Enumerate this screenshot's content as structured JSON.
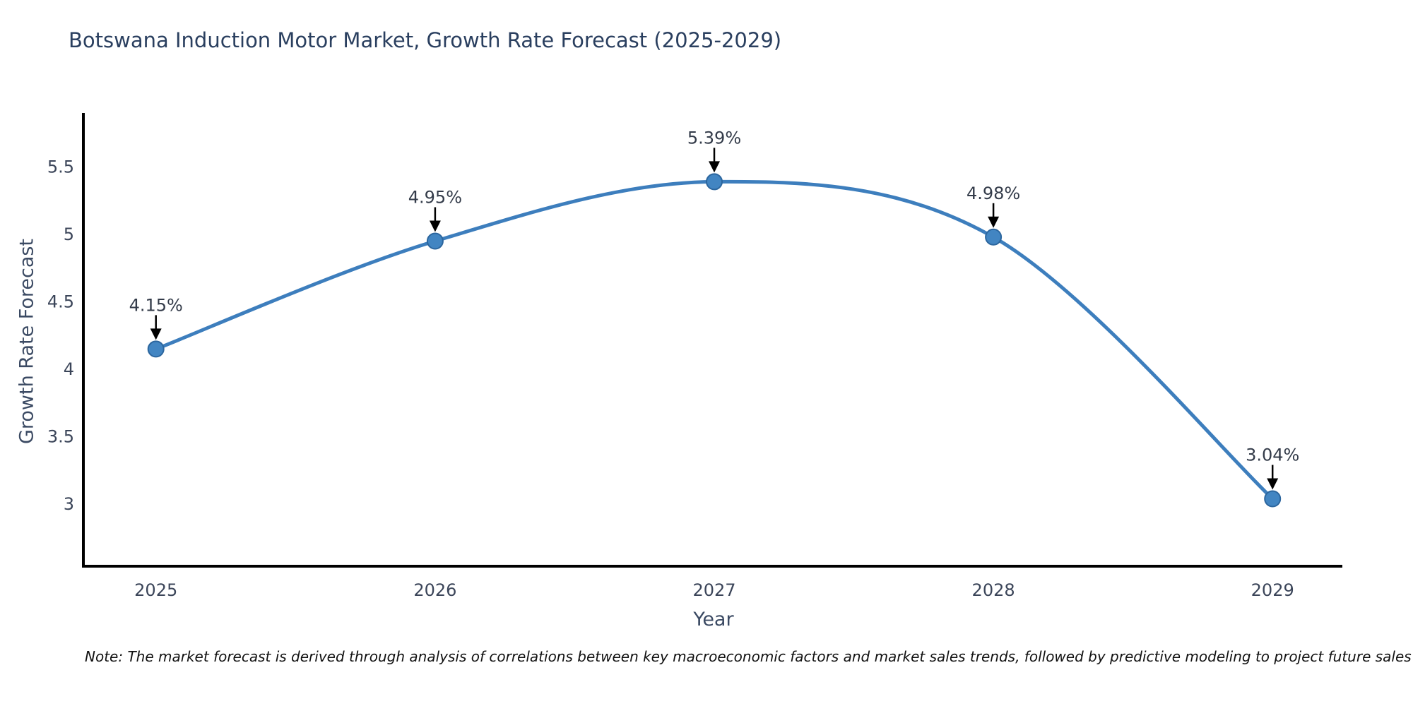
{
  "title": "Botswana Induction Motor Market, Growth Rate Forecast (2025-2029)",
  "note": "Note: The market forecast is derived through analysis of correlations between key macroeconomic factors and market sales trends, followed by predictive modeling to project future sales",
  "chart_data": {
    "type": "line",
    "title": "Botswana Induction Motor Market, Growth Rate Forecast (2025-2029)",
    "xlabel": "Year",
    "ylabel": "Growth Rate Forecast",
    "x": [
      2025,
      2026,
      2027,
      2028,
      2029
    ],
    "values": [
      4.15,
      4.95,
      5.39,
      4.98,
      3.04
    ],
    "point_labels": [
      "4.15%",
      "4.95%",
      "5.39%",
      "4.98%",
      "3.04%"
    ],
    "yticks": [
      3,
      3.5,
      4,
      4.5,
      5,
      5.5
    ],
    "xtick_labels": [
      "2025",
      "2026",
      "2027",
      "2028",
      "2029"
    ],
    "xlim": [
      2024.74,
      2029.25
    ],
    "ylim": [
      2.54,
      5.9
    ],
    "grid": false,
    "legend": "none",
    "line_shape": "spline",
    "colors": {
      "line": "#3d7ebd",
      "marker": "#4285c2",
      "marker_edge": "#2c669e",
      "annotation_text": "#333b49",
      "annotation_arrow": "#000000",
      "axis_line": "#000000",
      "tick_text": "#3b4559",
      "title_text": "#2a3f5f"
    }
  }
}
